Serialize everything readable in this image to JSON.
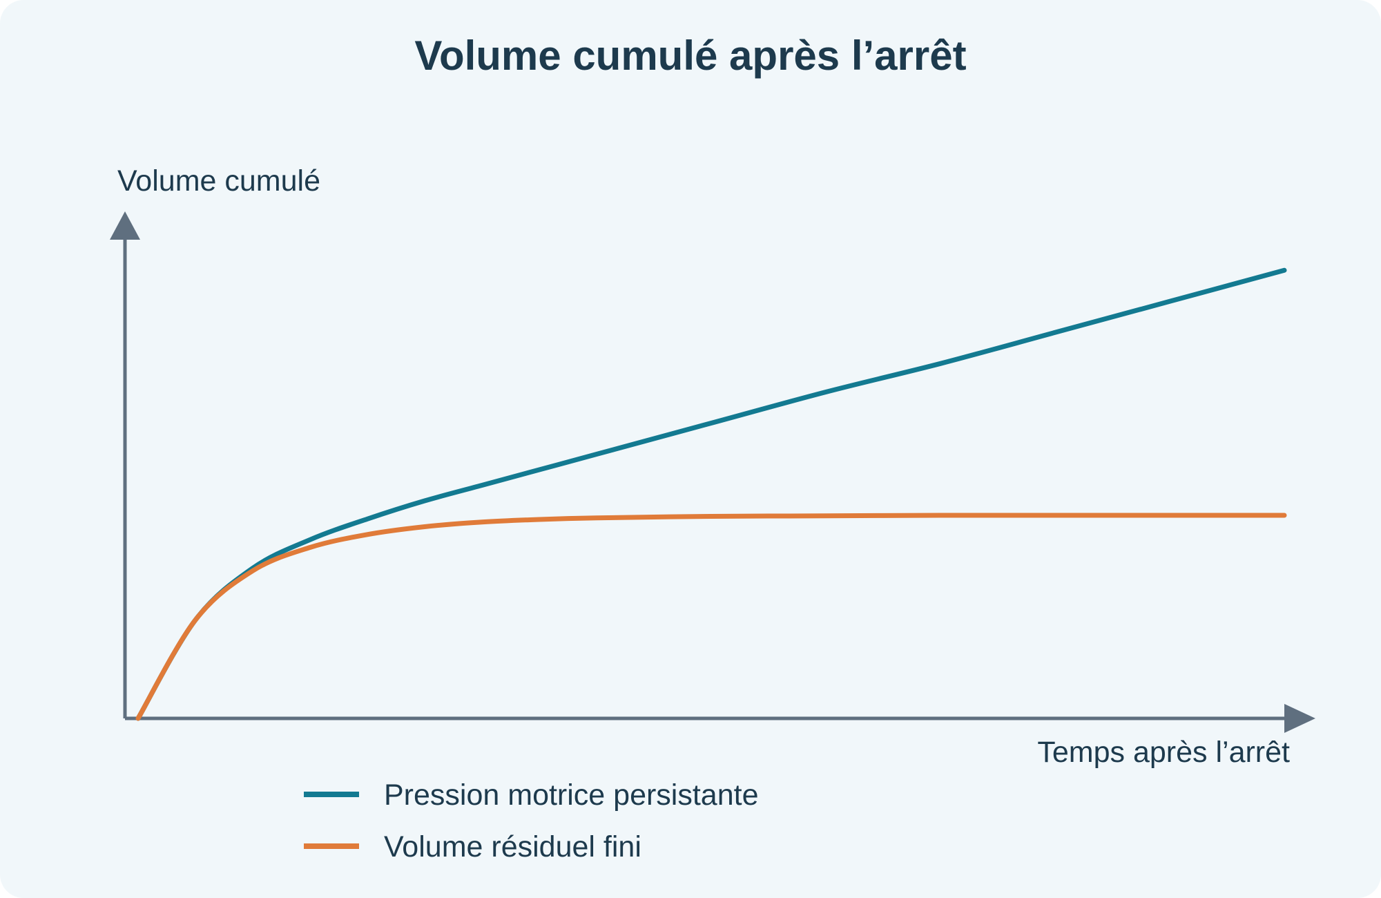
{
  "chart_data": {
    "type": "line",
    "title": "Volume cumulé après l’arrêt",
    "xlabel": "Temps après l’arrêt",
    "ylabel": "Volume cumulé",
    "x_ticks": [],
    "y_ticks": [],
    "grid": false,
    "legend_position": "bottom-left",
    "xlim": [
      0,
      10
    ],
    "ylim": [
      0,
      10
    ],
    "series": [
      {
        "name": "Pression motrice persistante",
        "color": "#137a91",
        "x": [
          0,
          0.5,
          1,
          1.5,
          2,
          2.5,
          3,
          3.5,
          4,
          5,
          6,
          7,
          8,
          9,
          10
        ],
        "y": [
          0,
          1.9,
          2.9,
          3.45,
          3.85,
          4.2,
          4.5,
          4.8,
          5.1,
          5.7,
          6.3,
          6.85,
          7.45,
          8.05,
          8.65
        ]
      },
      {
        "name": "Volume résiduel fini",
        "color": "#e07b39",
        "x": [
          0,
          0.5,
          1,
          1.5,
          2,
          2.5,
          3,
          3.5,
          4,
          5,
          6,
          7,
          8,
          9,
          10
        ],
        "y": [
          0,
          1.9,
          2.85,
          3.3,
          3.55,
          3.7,
          3.79,
          3.84,
          3.87,
          3.9,
          3.91,
          3.92,
          3.92,
          3.92,
          3.92
        ]
      }
    ]
  }
}
